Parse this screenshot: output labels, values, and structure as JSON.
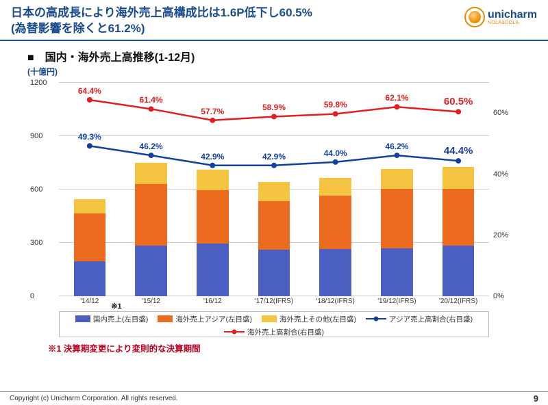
{
  "header": {
    "title_line1": "日本の高成長により海外売上高構成比は1.6P低下し60.5%",
    "title_line2": "(為替影響を除くと61.2%)",
    "logo_name": "unicharm",
    "logo_sub": "NOLA&DOLA"
  },
  "subtitle": "■　国内・海外売上高推移(1-12月)",
  "unit_label": "(十億円)",
  "chart": {
    "type": "stacked-bar-with-dual-line",
    "categories": [
      "'14/12",
      "'15/12",
      "'16/12",
      "'17/12(IFRS)",
      "'18/12(IFRS)",
      "'19/12(IFRS)",
      "'20/12(IFRS)"
    ],
    "note_after_cat0": "※1",
    "left_axis": {
      "min": 0,
      "max": 1200,
      "step": 300,
      "label_color": "#333"
    },
    "right_axis": {
      "min": 0,
      "max": 70,
      "ticks": [
        0,
        20,
        40,
        60
      ],
      "suffix": "%",
      "label_color": "#333"
    },
    "bar_series": [
      {
        "name": "国内売上(左目盛)",
        "color": "#4a5fc1",
        "values": [
          195,
          285,
          295,
          260,
          265,
          270,
          285
        ]
      },
      {
        "name": "海外売上アジア(左目盛)",
        "color": "#ed6b1f",
        "values": [
          270,
          345,
          300,
          275,
          300,
          335,
          320
        ]
      },
      {
        "name": "海外売上その他(左目盛)",
        "color": "#f5c542",
        "values": [
          80,
          120,
          115,
          105,
          100,
          110,
          120
        ]
      }
    ],
    "line_series": [
      {
        "name": "アジア売上高割合(右目盛)",
        "color": "#1340a0",
        "marker": "circle",
        "values": [
          49.3,
          46.2,
          42.9,
          42.9,
          44.0,
          46.2,
          44.4
        ],
        "labels": [
          "49.3%",
          "46.2%",
          "42.9%",
          "42.9%",
          "44.0%",
          "46.2%",
          "44.4%"
        ],
        "last_emphasis": true
      },
      {
        "name": "海外売上高割合(右目盛)",
        "color": "#e02020",
        "marker": "circle",
        "values": [
          64.4,
          61.4,
          57.7,
          58.9,
          59.8,
          62.1,
          60.5
        ],
        "labels": [
          "64.4%",
          "61.4%",
          "57.7%",
          "58.9%",
          "59.8%",
          "62.1%",
          "60.5%"
        ],
        "last_emphasis": true
      }
    ],
    "grid_color": "#cccccc",
    "background": "#ffffff"
  },
  "legend": {
    "items": [
      {
        "type": "box",
        "color": "#4a5fc1",
        "label": "国内売上(左目盛)"
      },
      {
        "type": "box",
        "color": "#ed6b1f",
        "label": "海外売上アジア(左目盛)"
      },
      {
        "type": "box",
        "color": "#f5c542",
        "label": "海外売上その他(左目盛)"
      },
      {
        "type": "line",
        "color": "#1340a0",
        "label": "アジア売上高割合(右目盛)"
      },
      {
        "type": "line",
        "color": "#e02020",
        "label": "海外売上高割合(右目盛)"
      }
    ]
  },
  "footnote": "※1 決算期変更により変則的な決算期間",
  "footer": {
    "copyright": "Copyright (c) Unicharm Corporation. All rights reserved.",
    "page": "9"
  }
}
